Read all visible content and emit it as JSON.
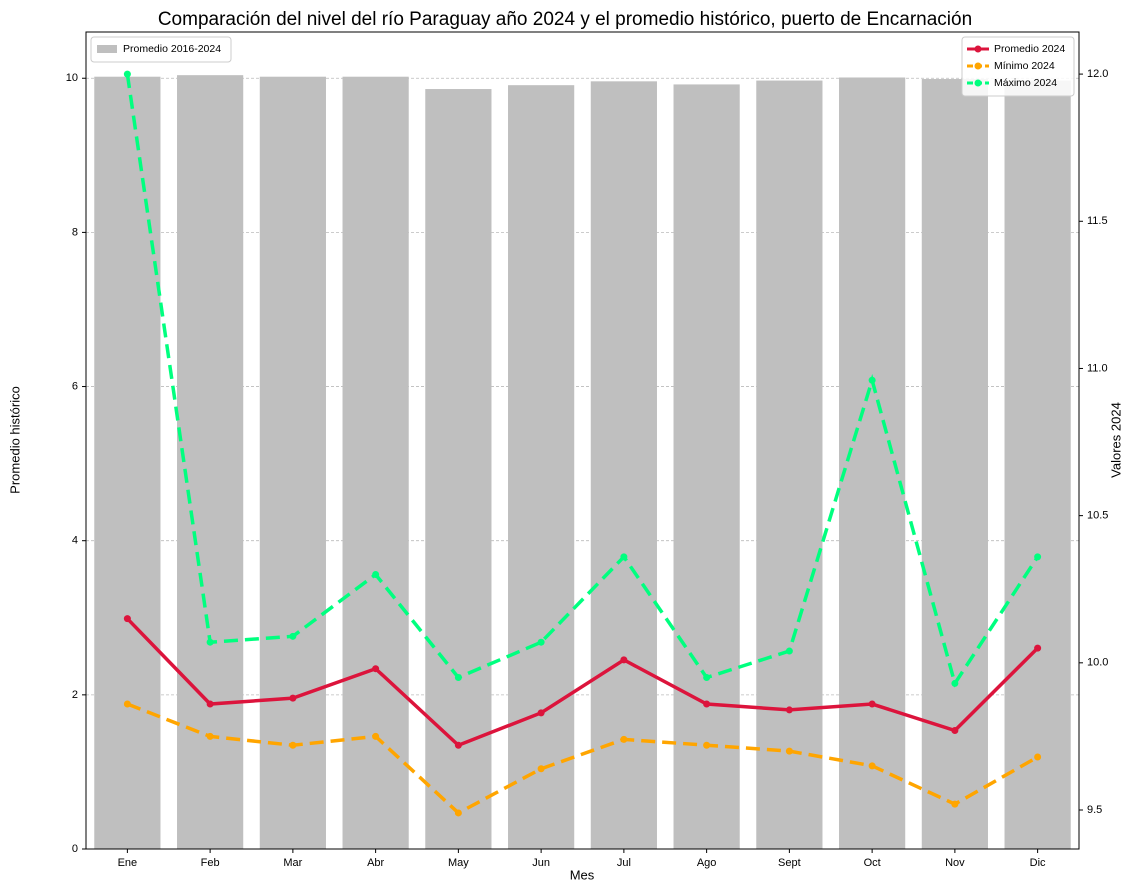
{
  "chart_data": {
    "type": "bar",
    "title": "Comparación del nivel del río Paraguay año 2024 y el promedio histórico, puerto de Encarnación",
    "x_label": "Mes",
    "y_label": "Promedio histórico",
    "y2_label": "Valores 2024",
    "categories": [
      "Ene",
      "Feb",
      "Mar",
      "Abr",
      "May",
      "Jun",
      "Jul",
      "Ago",
      "Sept",
      "Oct",
      "Nov",
      "Dic"
    ],
    "series": [
      {
        "name": "Promedio 2016-2024",
        "type": "bar",
        "color": "#bfbfbf",
        "values": [
          10.02,
          10.04,
          10.02,
          10.02,
          9.86,
          9.91,
          9.96,
          9.92,
          9.97,
          10.01,
          9.99,
          9.97
        ]
      },
      {
        "name": "Promedio 2024",
        "type": "line",
        "axis": "y2",
        "color": "#dc143c",
        "dashed": false,
        "values": [
          10.15,
          9.86,
          9.88,
          9.98,
          9.72,
          9.83,
          10.01,
          9.86,
          9.84,
          9.86,
          9.77,
          10.05
        ]
      },
      {
        "name": "Mínimo 2024",
        "type": "line",
        "axis": "y2",
        "color": "#ffa500",
        "dashed": true,
        "values": [
          9.86,
          9.75,
          9.72,
          9.75,
          9.49,
          9.64,
          9.74,
          9.72,
          9.7,
          9.65,
          9.52,
          9.68
        ]
      },
      {
        "name": "Máximo 2024",
        "type": "line",
        "axis": "y2",
        "color": "#00ff7f",
        "dashed": true,
        "values": [
          12.0,
          10.07,
          10.09,
          10.3,
          9.95,
          10.07,
          10.36,
          9.95,
          10.04,
          10.96,
          9.93,
          10.36
        ]
      }
    ],
    "ylim": [
      0,
      10.6
    ],
    "yticks": [
      0,
      2,
      4,
      6,
      8,
      10
    ],
    "y2lim": [
      9.3675,
      12.143
    ],
    "y2ticks": [
      9.5,
      {
        "value": 10,
        "label": "10.0"
      },
      10.5,
      {
        "value": 11,
        "label": "11.0"
      },
      11.5,
      {
        "value": 12,
        "label": "12.0"
      }
    ],
    "grid": true,
    "legend": {
      "bars": "upper left",
      "lines": "upper right"
    }
  }
}
